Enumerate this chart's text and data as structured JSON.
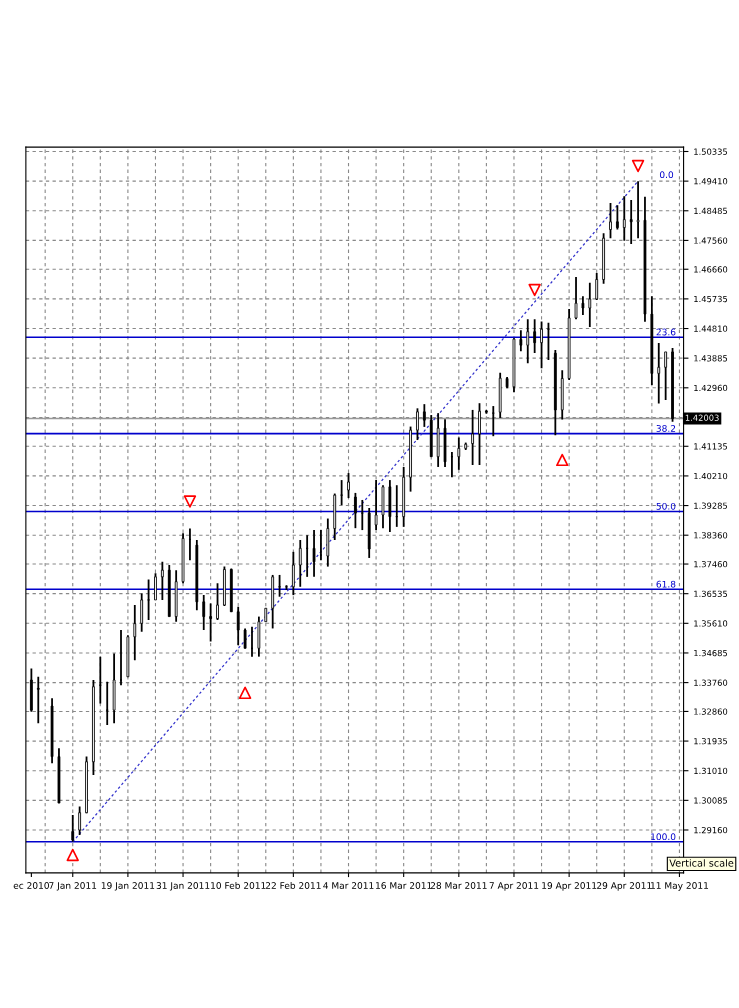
{
  "chart_data": {
    "type": "candlestick",
    "categories": [
      "ec 2010",
      null,
      null,
      null,
      null,
      null,
      "7 Jan 2011",
      null,
      null,
      null,
      null,
      null,
      null,
      null,
      "19 Jan 2011",
      null,
      null,
      null,
      null,
      null,
      null,
      null,
      "31 Jan 2011",
      null,
      null,
      null,
      null,
      null,
      null,
      null,
      "10 Feb 2011",
      null,
      null,
      null,
      null,
      null,
      null,
      null,
      "22 Feb 2011",
      null,
      null,
      null,
      null,
      null,
      null,
      null,
      "4 Mar 2011",
      null,
      null,
      null,
      null,
      null,
      null,
      null,
      "16 Mar 2011",
      null,
      null,
      null,
      null,
      null,
      null,
      null,
      "28 Mar 2011",
      null,
      null,
      null,
      null,
      null,
      null,
      null,
      "7 Apr 2011",
      null,
      null,
      null,
      null,
      null,
      null,
      null,
      "19 Apr 2011",
      null,
      null,
      null,
      null,
      null,
      null,
      null,
      "29 Apr 2011",
      null,
      null,
      null,
      null,
      null,
      null,
      null,
      "11 May 2011"
    ],
    "color": "#000000",
    "ohlc": [
      [
        1.3384,
        1.342,
        1.3285,
        1.329
      ],
      [
        1.3358,
        1.3394,
        1.3249,
        1.3355
      ],
      null,
      [
        1.3303,
        1.3327,
        1.3124,
        1.3145
      ],
      [
        1.3145,
        1.3171,
        1.3,
        1.3
      ],
      null,
      [
        1.2911,
        1.2963,
        1.2879,
        1.2885
      ],
      [
        1.2916,
        1.2989,
        1.29,
        1.297
      ],
      [
        1.297,
        1.3145,
        1.2968,
        1.3129
      ],
      [
        1.3129,
        1.3384,
        1.3088,
        1.3363
      ],
      [
        1.3368,
        1.3457,
        1.3311,
        1.3368
      ],
      [
        1.329,
        1.3379,
        1.3244,
        1.329
      ],
      [
        1.329,
        1.3467,
        1.3249,
        1.3384
      ],
      [
        1.3384,
        1.354,
        1.3368,
        1.3384
      ],
      [
        1.3394,
        1.3524,
        1.3394,
        1.3519
      ],
      [
        1.3519,
        1.3618,
        1.3446,
        1.356
      ],
      [
        1.3561,
        1.3654,
        1.3535,
        1.3634
      ],
      [
        1.3634,
        1.3698,
        1.3571,
        1.3634
      ],
      [
        1.3634,
        1.3717,
        1.3634,
        1.3706
      ],
      [
        1.3706,
        1.3753,
        1.3634,
        1.3727
      ],
      [
        1.3727,
        1.3743,
        1.3582,
        1.3582
      ],
      [
        1.3582,
        1.3727,
        1.3566,
        1.3691
      ],
      [
        1.3691,
        1.3842,
        1.3686,
        1.3826
      ],
      [
        1.3823,
        1.3857,
        1.3758,
        1.3823
      ],
      [
        1.3805,
        1.3821,
        1.3602,
        1.3628
      ],
      [
        1.3628,
        1.3649,
        1.354,
        1.3582
      ],
      [
        1.3582,
        1.3623,
        1.3504,
        1.3576
      ],
      [
        1.3576,
        1.3686,
        1.3571,
        1.3618
      ],
      [
        1.3618,
        1.3738,
        1.3615,
        1.3729
      ],
      [
        1.3729,
        1.3732,
        1.3597,
        1.3597
      ],
      [
        1.3597,
        1.3613,
        1.3493,
        1.354
      ],
      [
        1.354,
        1.3545,
        1.3483,
        1.3483
      ],
      [
        1.3483,
        1.355,
        1.3457,
        1.3483
      ],
      [
        1.3483,
        1.3582,
        1.3457,
        1.3566
      ],
      [
        1.3566,
        1.3608,
        1.3566,
        1.3608
      ],
      [
        1.3608,
        1.3712,
        1.3545,
        1.3706
      ],
      [
        1.3675,
        1.3712,
        1.3644,
        1.3675
      ],
      [
        1.3675,
        1.368,
        1.3665,
        1.3675
      ],
      [
        1.3675,
        1.3784,
        1.3649,
        1.3743
      ],
      [
        1.3743,
        1.3821,
        1.3675,
        1.3795
      ],
      [
        1.3795,
        1.3836,
        1.3706,
        1.3795
      ],
      [
        1.3795,
        1.3852,
        1.3706,
        1.3753
      ],
      [
        1.3774,
        1.3852,
        1.3758,
        1.3774
      ],
      [
        1.3771,
        1.3888,
        1.3738,
        1.3857
      ],
      [
        1.3857,
        1.3966,
        1.3821,
        1.3961
      ],
      [
        1.3961,
        1.4008,
        1.393,
        1.3961
      ],
      [
        1.3977,
        1.403,
        1.3952,
        1.4002
      ],
      [
        1.3955,
        1.3968,
        1.3858,
        1.3905
      ],
      [
        1.3905,
        1.3946,
        1.3852,
        1.3905
      ],
      [
        1.3905,
        1.3921,
        1.3765,
        1.3793
      ],
      [
        1.3868,
        1.4008,
        1.3852,
        1.3899
      ],
      [
        1.3899,
        1.3992,
        1.3858,
        1.3987
      ],
      [
        1.3987,
        1.4008,
        1.3846,
        1.3894
      ],
      [
        1.3894,
        1.3992,
        1.3862,
        1.3894
      ],
      [
        1.3894,
        1.4049,
        1.3862,
        1.4017
      ],
      [
        1.4017,
        1.4175,
        1.3972,
        1.4164
      ],
      [
        1.4164,
        1.4232,
        1.4133,
        1.4221
      ],
      [
        1.4221,
        1.4245,
        1.4174,
        1.4195
      ],
      [
        1.4195,
        1.4211,
        1.4081,
        1.4081
      ],
      [
        1.4081,
        1.4217,
        1.4049,
        1.417
      ],
      [
        1.417,
        1.4198,
        1.4049,
        1.4065
      ],
      [
        1.4081,
        1.4096,
        1.4017,
        1.4081
      ],
      [
        1.4081,
        1.4141,
        1.404,
        1.4107
      ],
      [
        1.4107,
        1.4125,
        1.4102,
        1.412
      ],
      [
        1.4122,
        1.4227,
        1.4055,
        1.4152
      ],
      [
        1.4152,
        1.4248,
        1.4055,
        1.4223
      ],
      [
        1.4223,
        1.4227,
        1.4215,
        1.422
      ],
      [
        1.4217,
        1.4239,
        1.4145,
        1.4217
      ],
      [
        1.422,
        1.4343,
        1.4202,
        1.4326
      ],
      [
        1.4325,
        1.433,
        1.4295,
        1.4299
      ],
      [
        1.4299,
        1.4451,
        1.4283,
        1.4448
      ],
      [
        1.4447,
        1.4476,
        1.441,
        1.4429
      ],
      [
        1.4429,
        1.451,
        1.4373,
        1.4471
      ],
      [
        1.4471,
        1.451,
        1.4405,
        1.4437
      ],
      [
        1.4437,
        1.4503,
        1.4357,
        1.4479
      ],
      [
        1.4479,
        1.4499,
        1.4383,
        1.4479
      ],
      [
        1.4404,
        1.4414,
        1.4148,
        1.4227
      ],
      [
        1.4227,
        1.4351,
        1.4197,
        1.4325
      ],
      [
        1.4325,
        1.4542,
        1.432,
        1.4514
      ],
      [
        1.4514,
        1.4642,
        1.451,
        1.456
      ],
      [
        1.456,
        1.4582,
        1.4523,
        1.4545
      ],
      [
        1.4545,
        1.4624,
        1.4486,
        1.4573
      ],
      [
        1.4573,
        1.4654,
        1.457,
        1.4634
      ],
      [
        1.4634,
        1.4778,
        1.4621,
        1.4763
      ],
      [
        1.479,
        1.4873,
        1.4763,
        1.4814
      ],
      [
        1.4814,
        1.4866,
        1.479,
        1.4796
      ],
      [
        1.4796,
        1.4894,
        1.4755,
        1.4821
      ],
      [
        1.4821,
        1.4882,
        1.4745,
        1.4814
      ],
      [
        1.4814,
        1.4941,
        1.4763,
        1.4819
      ],
      [
        1.4819,
        1.4892,
        1.4502,
        1.4526
      ],
      [
        1.4526,
        1.4582,
        1.4305,
        1.4341
      ],
      [
        1.4341,
        1.4436,
        1.4247,
        1.436
      ],
      [
        1.436,
        1.4408,
        1.4258,
        1.4408
      ],
      [
        1.4408,
        1.442,
        1.419,
        1.42
      ],
      null
    ],
    "series": [
      {
        "type": "line",
        "color": "#3333cc",
        "line_style": "dashed",
        "marker": "none",
        "values": [
          null,
          null,
          null,
          null,
          null,
          null,
          1.2879,
          null,
          null,
          null,
          null,
          null,
          null,
          null,
          null,
          null,
          null,
          null,
          null,
          null,
          null,
          null,
          null,
          null,
          null,
          null,
          null,
          null,
          null,
          null,
          null,
          null,
          null,
          null,
          null,
          null,
          null,
          null,
          null,
          null,
          null,
          null,
          null,
          null,
          null,
          null,
          null,
          null,
          null,
          null,
          null,
          null,
          null,
          null,
          null,
          null,
          null,
          null,
          null,
          null,
          null,
          null,
          null,
          null,
          null,
          null,
          null,
          null,
          null,
          null,
          null,
          null,
          null,
          null,
          null,
          null,
          null,
          null,
          null,
          null,
          null,
          null,
          null,
          null,
          null,
          null,
          null,
          null,
          1.4941,
          null,
          null,
          null,
          null,
          null,
          null
        ]
      },
      {
        "type": "scatter",
        "color": "#ff0000",
        "marker": "triangle",
        "values": [
          null,
          null,
          null,
          null,
          null,
          null,
          1.2838,
          null,
          null,
          null,
          null,
          null,
          null,
          null,
          null,
          null,
          null,
          null,
          null,
          null,
          null,
          null,
          null,
          null,
          null,
          null,
          null,
          null,
          null,
          null,
          null,
          1.3344,
          null,
          null,
          null,
          null,
          null,
          null,
          null,
          null,
          null,
          null,
          null,
          null,
          null,
          null,
          null,
          null,
          null,
          null,
          null,
          null,
          null,
          null,
          null,
          null,
          null,
          null,
          null,
          null,
          null,
          null,
          null,
          null,
          null,
          null,
          null,
          null,
          null,
          null,
          null,
          null,
          null,
          null,
          null,
          null,
          null,
          1.4071,
          null,
          null,
          null,
          null,
          null,
          null,
          null,
          null,
          null,
          null,
          null,
          null,
          null,
          null,
          null,
          null,
          null
        ]
      },
      {
        "type": "scatter",
        "color": "#ff0000",
        "marker": "triangle_down",
        "values": [
          null,
          null,
          null,
          null,
          null,
          null,
          null,
          null,
          null,
          null,
          null,
          null,
          null,
          null,
          null,
          null,
          null,
          null,
          null,
          null,
          null,
          null,
          null,
          1.3941,
          null,
          null,
          null,
          null,
          null,
          null,
          null,
          null,
          null,
          null,
          null,
          null,
          null,
          null,
          null,
          null,
          null,
          null,
          null,
          null,
          null,
          null,
          null,
          null,
          null,
          null,
          null,
          null,
          null,
          null,
          null,
          null,
          null,
          null,
          null,
          null,
          null,
          null,
          null,
          null,
          null,
          null,
          null,
          null,
          null,
          null,
          null,
          null,
          null,
          1.4601,
          null,
          null,
          null,
          null,
          null,
          null,
          null,
          null,
          null,
          null,
          null,
          null,
          null,
          null,
          1.4988,
          null,
          null,
          null,
          null,
          null,
          null
        ]
      }
    ],
    "ylim": [
      1.2782,
      1.5047
    ],
    "yticks": [
      {
        "value": 1.50335,
        "label": "1.50335"
      },
      {
        "value": 1.4941,
        "label": "1.49410"
      },
      {
        "value": 1.48485,
        "label": "1.48485"
      },
      {
        "value": 1.4756,
        "label": "1.47560"
      },
      {
        "value": 1.4666,
        "label": "1.46660"
      },
      {
        "value": 1.45735,
        "label": "1.45735"
      },
      {
        "value": 1.4481,
        "label": "1.44810"
      },
      {
        "value": 1.43885,
        "label": "1.43885"
      },
      {
        "value": 1.4296,
        "label": "1.42960"
      },
      {
        "value": 1.42035,
        "label": null
      },
      {
        "value": 1.41135,
        "label": "1.41135"
      },
      {
        "value": 1.4021,
        "label": "1.40210"
      },
      {
        "value": 1.39285,
        "label": "1.39285"
      },
      {
        "value": 1.3836,
        "label": "1.38360"
      },
      {
        "value": 1.3746,
        "label": "1.37460"
      },
      {
        "value": 1.36535,
        "label": "1.36535"
      },
      {
        "value": 1.3561,
        "label": "1.35610"
      },
      {
        "value": 1.34685,
        "label": "1.34685"
      },
      {
        "value": 1.3376,
        "label": "1.33760"
      },
      {
        "value": 1.3286,
        "label": "1.32860"
      },
      {
        "value": 1.31935,
        "label": "1.31935"
      },
      {
        "value": 1.3101,
        "label": "1.31010"
      },
      {
        "value": 1.30085,
        "label": "1.30085"
      },
      {
        "value": 1.2916,
        "label": "1.29160"
      }
    ],
    "grid": true,
    "ref_lines": [
      {
        "axis": "y",
        "value": 1.4454,
        "color": "#0000cc"
      },
      {
        "axis": "y",
        "value": 1.4153,
        "color": "#0000cc"
      },
      {
        "axis": "y",
        "value": 1.391,
        "color": "#0000cc"
      },
      {
        "axis": "y",
        "value": 1.3667,
        "color": "#0000cc"
      },
      {
        "axis": "y",
        "value": 1.2879,
        "color": "#0000cc"
      },
      {
        "axis": "y",
        "value": 1.42003,
        "label": "1.42003",
        "color": "#999999"
      }
    ],
    "annotations": [
      "0.0",
      {
        "text": "23.6",
        "y": 1.4454
      },
      {
        "text": "38.2",
        "y": 1.4153
      },
      {
        "text": "50.0",
        "y": 1.391
      },
      {
        "text": "61.8",
        "y": 1.3667
      },
      {
        "text": "100.0",
        "y": 1.2879
      },
      "Vertical scale"
    ]
  }
}
